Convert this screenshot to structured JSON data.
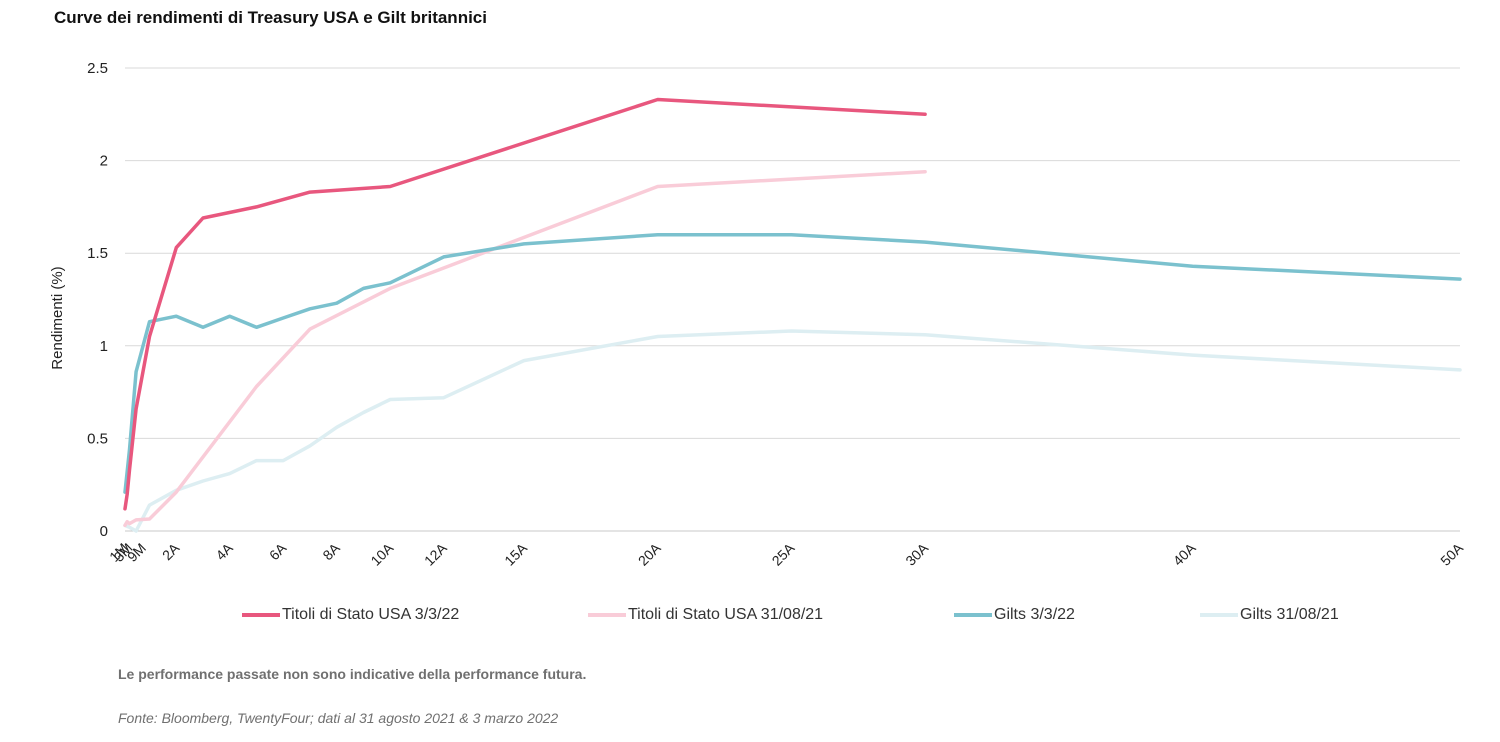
{
  "chart_data": {
    "type": "line",
    "title": "Curve dei rendimenti di Treasury USA e Gilt britannici",
    "xlabel": "",
    "ylabel": "Rendimenti (%)",
    "ylim": [
      0,
      2.5
    ],
    "yticks": [
      "0",
      "0.5",
      "1",
      "1.5",
      "2",
      "2.5"
    ],
    "x_tenors": [
      "1M",
      "2M",
      "3M",
      "6M",
      "9M",
      "1A",
      "2A",
      "3A",
      "4A",
      "5A",
      "6A",
      "7A",
      "8A",
      "9A",
      "10A",
      "12A",
      "15A",
      "20A",
      "25A",
      "30A",
      "40A",
      "50A"
    ],
    "x_tick_labels": [
      "1M",
      "3M",
      "9M",
      "2A",
      "4A",
      "6A",
      "8A",
      "10A",
      "12A",
      "15A",
      "20A",
      "25A",
      "30A",
      "40A",
      "50A"
    ],
    "grid": true,
    "legend_position": "bottom",
    "series": [
      {
        "name": "Titoli di Stato USA 3/3/22",
        "color": "#E8577E",
        "x": [
          "1M",
          "2M",
          "3M",
          "6M",
          "1A",
          "2A",
          "3A",
          "5A",
          "7A",
          "10A",
          "20A",
          "30A"
        ],
        "values": [
          0.12,
          0.2,
          0.33,
          0.66,
          1.05,
          1.53,
          1.69,
          1.75,
          1.83,
          1.86,
          2.33,
          2.25
        ]
      },
      {
        "name": "Titoli di Stato USA 31/08/21",
        "color": "#F9CCD8",
        "x": [
          "1M",
          "2M",
          "3M",
          "6M",
          "1A",
          "2A",
          "3A",
          "5A",
          "7A",
          "10A",
          "20A",
          "30A"
        ],
        "values": [
          0.03,
          0.05,
          0.04,
          0.06,
          0.065,
          0.21,
          0.4,
          0.78,
          1.09,
          1.31,
          1.86,
          1.94
        ]
      },
      {
        "name": "Gilts 3/3/22",
        "color": "#7BC1CE",
        "x": [
          "1M",
          "3M",
          "6M",
          "1A",
          "2A",
          "3A",
          "4A",
          "5A",
          "6A",
          "7A",
          "8A",
          "9A",
          "10A",
          "12A",
          "15A",
          "20A",
          "25A",
          "30A",
          "40A",
          "50A"
        ],
        "values": [
          0.21,
          0.44,
          0.86,
          1.13,
          1.16,
          1.1,
          1.16,
          1.1,
          1.15,
          1.2,
          1.23,
          1.31,
          1.34,
          1.48,
          1.55,
          1.6,
          1.6,
          1.56,
          1.43,
          1.36
        ]
      },
      {
        "name": "Gilts 31/08/21",
        "color": "#DDEEF2",
        "x": [
          "1M",
          "3M",
          "6M",
          "1A",
          "2A",
          "3A",
          "4A",
          "5A",
          "6A",
          "7A",
          "8A",
          "9A",
          "10A",
          "12A",
          "15A",
          "20A",
          "25A",
          "30A",
          "40A",
          "50A"
        ],
        "values": [
          0.03,
          0.02,
          0.0,
          0.14,
          0.22,
          0.27,
          0.31,
          0.38,
          0.38,
          0.46,
          0.56,
          0.64,
          0.71,
          0.72,
          0.92,
          1.05,
          1.08,
          1.06,
          0.95,
          0.87
        ]
      }
    ]
  },
  "footer": {
    "note": "Le performance passate non sono indicative della performance futura.",
    "source": "Fonte: Bloomberg, TwentyFour; dati al 31 agosto 2021 & 3 marzo 2022"
  }
}
